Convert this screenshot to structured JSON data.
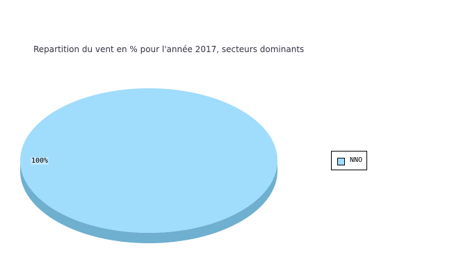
{
  "chart_data": {
    "type": "pie",
    "style": "3d",
    "title": "Repartition du vent en % pour l'année 2017, secteurs dominants",
    "slices": [
      {
        "name": "NNO",
        "value": 100,
        "label": "100%",
        "color": "#a0dcfc",
        "side_color": "#6fafd0"
      }
    ],
    "legend": {
      "placement": "right"
    }
  }
}
